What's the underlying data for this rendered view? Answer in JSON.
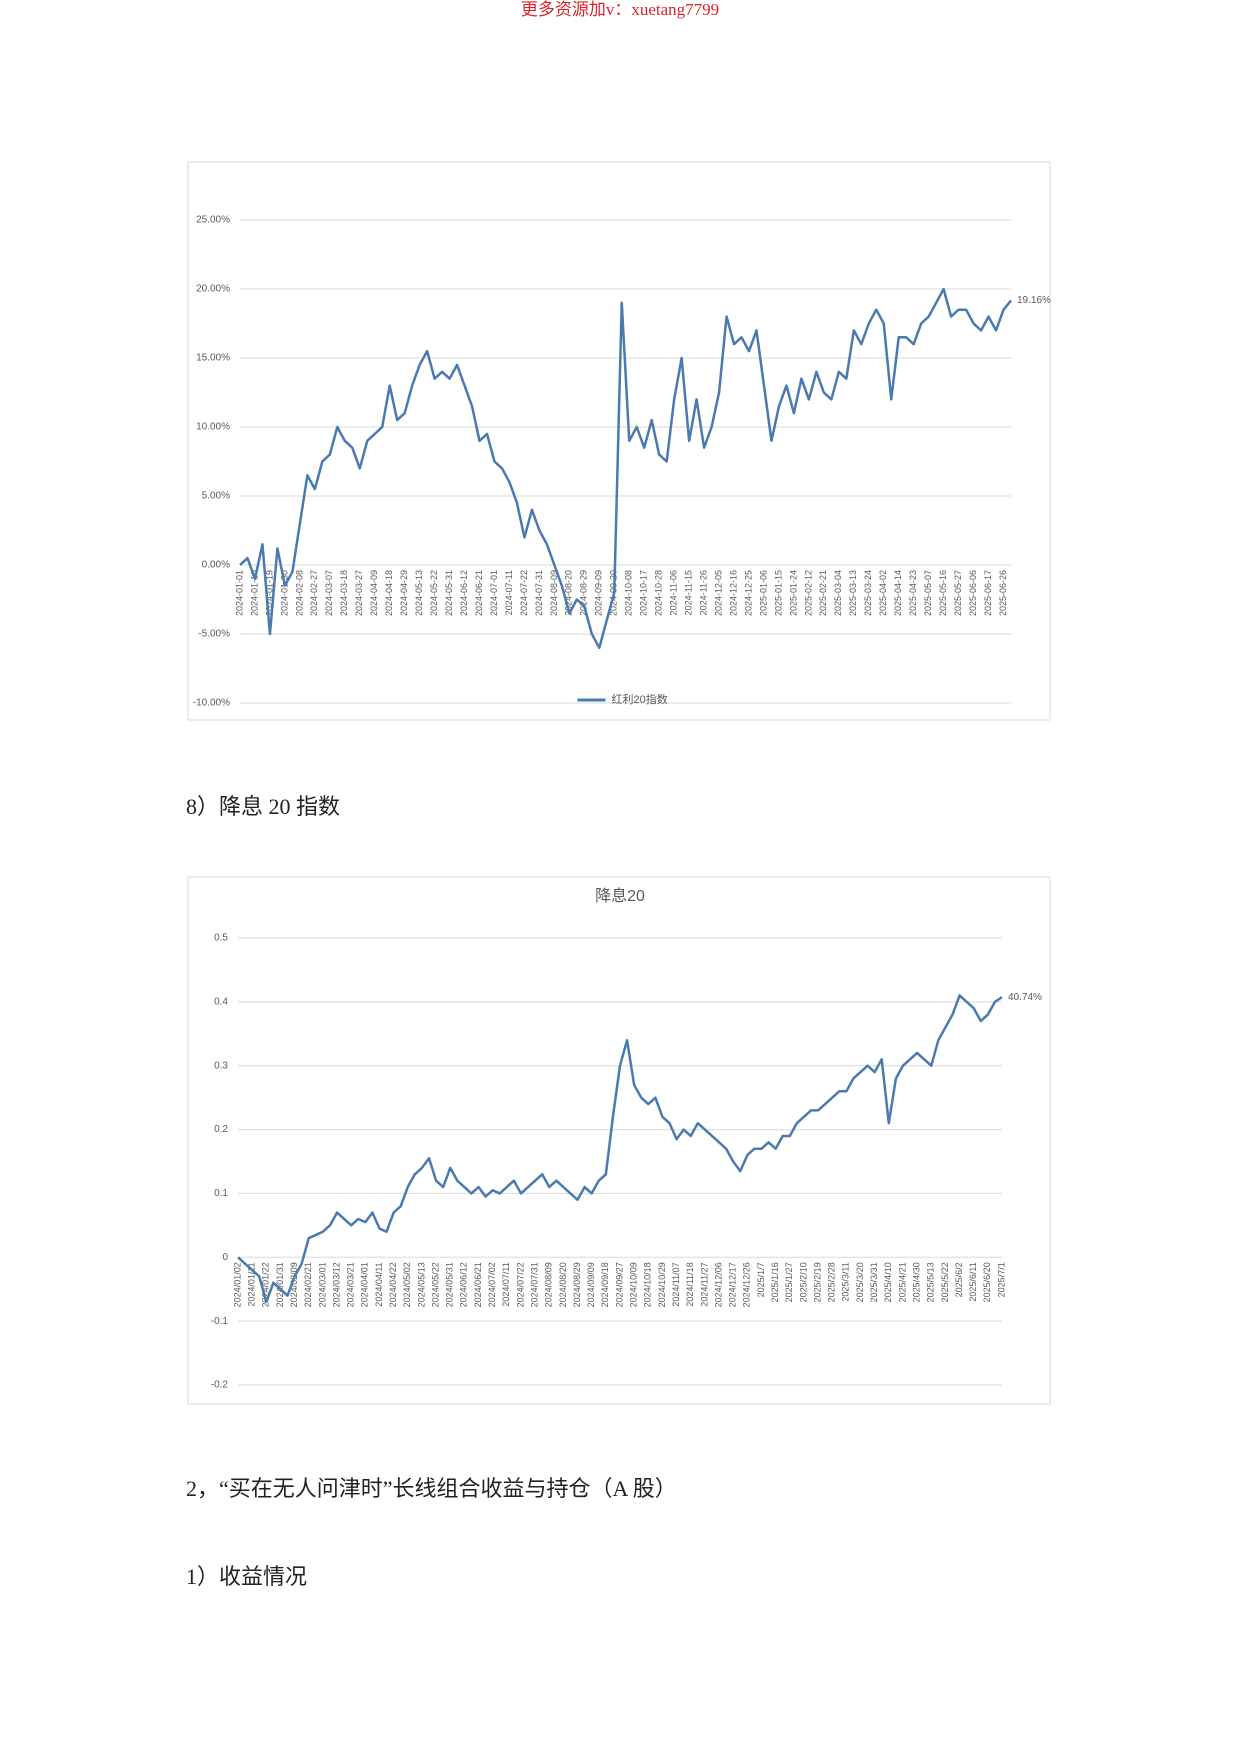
{
  "header": {
    "watermark": "更多资源加v：xuetang7799"
  },
  "headings": [
    "8）降息 20 指数",
    "2，“买在无人问津时”长线组合收益与持仓（A 股）",
    "1）收益情况"
  ],
  "chart_data": [
    {
      "type": "line",
      "legend": "bottom",
      "grid": true,
      "ylim": [
        -10,
        25
      ],
      "yticks": [
        {
          "value": -10,
          "label": "-10.00%"
        },
        {
          "value": -5,
          "label": "-5.00%"
        },
        {
          "value": 0,
          "label": "0.00%"
        },
        {
          "value": 5,
          "label": "5.00%"
        },
        {
          "value": 10,
          "label": "10.00%"
        },
        {
          "value": 15,
          "label": "15.00%"
        },
        {
          "value": 20,
          "label": "20.00%"
        },
        {
          "value": 25,
          "label": "25.00%"
        }
      ],
      "categories": [
        "2024-01-01",
        null,
        "2024-01-10",
        null,
        "2024-01-19",
        null,
        "2024-01-30",
        null,
        "2024-02-08",
        null,
        "2024-02-27",
        null,
        "2024-03-07",
        null,
        "2024-03-18",
        null,
        "2024-03-27",
        null,
        "2024-04-09",
        null,
        "2024-04-18",
        null,
        "2024-04-29",
        null,
        "2024-05-13",
        null,
        "2024-05-22",
        null,
        "2024-05-31",
        null,
        "2024-06-12",
        null,
        "2024-06-21",
        null,
        "2024-07-01",
        null,
        "2024-07-11",
        null,
        "2024-07-22",
        null,
        "2024-07-31",
        null,
        "2024-08-09",
        null,
        "2024-08-20",
        null,
        "2024-08-29",
        null,
        "2024-09-09",
        null,
        "2024-09-20",
        null,
        "2024-10-08",
        null,
        "2024-10-17",
        null,
        "2024-10-28",
        null,
        "2024-11-06",
        null,
        "2024-11-15",
        null,
        "2024-11-26",
        null,
        "2024-12-05",
        null,
        "2024-12-16",
        null,
        "2024-12-25",
        null,
        "2025-01-06",
        null,
        "2025-01-15",
        null,
        "2025-01-24",
        null,
        "2025-02-12",
        null,
        "2025-02-21",
        null,
        "2025-03-04",
        null,
        "2025-03-13",
        null,
        "2025-03-24",
        null,
        "2025-04-02",
        null,
        "2025-04-14",
        null,
        "2025-04-23",
        null,
        "2025-05-07",
        null,
        "2025-05-16",
        null,
        "2025-05-27",
        null,
        "2025-06-06",
        null,
        "2025-06-17",
        null,
        "2025-06-26",
        null
      ],
      "series": [
        {
          "name": "红利20指数",
          "color": "#4a7ab0",
          "values": [
            0,
            0.5,
            -1,
            1.5,
            -5,
            1.2,
            -1.5,
            -0.5,
            3,
            6.5,
            5.5,
            7.5,
            8,
            10,
            9,
            8.5,
            7,
            9,
            9.5,
            10,
            13,
            10.5,
            11,
            13,
            14.5,
            15.5,
            13.5,
            14,
            13.5,
            14.5,
            13,
            11.5,
            9,
            9.5,
            7.5,
            7,
            6,
            4.5,
            2,
            4,
            2.5,
            1.5,
            0,
            -1.5,
            -3.5,
            -2.5,
            -3,
            -5,
            -6,
            -4,
            -2,
            19,
            9,
            10,
            8.5,
            10.5,
            8,
            7.5,
            12,
            15,
            9,
            12,
            8.5,
            10,
            12.5,
            18,
            16,
            16.5,
            15.5,
            17,
            13,
            9,
            11.5,
            13,
            11,
            13.5,
            12,
            14,
            12.5,
            12,
            14,
            13.5,
            17,
            16,
            17.5,
            18.5,
            17.5,
            12,
            16.5,
            16.5,
            16,
            17.5,
            18,
            19,
            20,
            18,
            18.5,
            18.5,
            17.5,
            17,
            18,
            17,
            18.5,
            19.16
          ],
          "value_labels": [
            null,
            null,
            null,
            null,
            null,
            null,
            null,
            null,
            null,
            null,
            null,
            null,
            null,
            null,
            null,
            null,
            null,
            null,
            null,
            null,
            null,
            null,
            null,
            null,
            null,
            null,
            null,
            null,
            null,
            null,
            null,
            null,
            null,
            null,
            null,
            null,
            null,
            null,
            null,
            null,
            null,
            null,
            null,
            null,
            null,
            null,
            null,
            null,
            null,
            null,
            null,
            null,
            null,
            null,
            null,
            null,
            null,
            null,
            null,
            null,
            null,
            null,
            null,
            null,
            null,
            null,
            null,
            null,
            null,
            null,
            null,
            null,
            null,
            null,
            null,
            null,
            null,
            null,
            null,
            null,
            null,
            null,
            null,
            null,
            null,
            null,
            null,
            null,
            null,
            null,
            null,
            null,
            null,
            null,
            null,
            null,
            null,
            null,
            null,
            null,
            null,
            null,
            null,
            "19.16%"
          ]
        }
      ]
    },
    {
      "type": "line",
      "title": "降息20",
      "grid": true,
      "ylim": [
        -0.2,
        0.5
      ],
      "yticks": [
        -0.2,
        -0.1,
        0,
        0.1,
        0.2,
        0.3,
        0.4,
        0.5
      ],
      "categories": [
        "2024/01/02",
        null,
        "2024/01/11",
        null,
        "2024/01/22",
        null,
        "2024/01/31",
        null,
        "2024/02/09",
        null,
        "2024/02/21",
        null,
        "2024/03/01",
        null,
        "2024/03/12",
        null,
        "2024/03/21",
        null,
        "2024/04/01",
        null,
        "2024/04/11",
        null,
        "2024/04/22",
        null,
        "2024/05/02",
        null,
        "2024/05/13",
        null,
        "2024/05/22",
        null,
        "2024/05/31",
        null,
        "2024/06/12",
        null,
        "2024/06/21",
        null,
        "2024/07/02",
        null,
        "2024/07/11",
        null,
        "2024/07/22",
        null,
        "2024/07/31",
        null,
        "2024/08/09",
        null,
        "2024/08/20",
        null,
        "2024/08/29",
        null,
        "2024/09/09",
        null,
        "2024/09/18",
        null,
        "2024/09/27",
        null,
        "2024/10/09",
        null,
        "2024/10/18",
        null,
        "2024/10/29",
        null,
        "2024/11/07",
        null,
        "2024/11/18",
        null,
        "2024/11/27",
        null,
        "2024/12/06",
        null,
        "2024/12/17",
        null,
        "2024/12/26",
        null,
        "2025/1/7",
        null,
        "2025/1/16",
        null,
        "2025/1/27",
        null,
        "2025/2/10",
        null,
        "2025/2/19",
        null,
        "2025/2/28",
        null,
        "2025/3/11",
        null,
        "2025/3/20",
        null,
        "2025/3/31",
        null,
        "2025/4/10",
        null,
        "2025/4/21",
        null,
        "2025/4/30",
        null,
        "2025/5/13",
        null,
        "2025/5/22",
        null,
        "2025/6/2",
        null,
        "2025/6/11",
        null,
        "2025/6/20",
        null,
        "2025/7/1"
      ],
      "series": [
        {
          "color": "#4a7ab0",
          "values": [
            0,
            -0.01,
            -0.02,
            -0.03,
            -0.07,
            -0.04,
            -0.05,
            -0.06,
            -0.03,
            -0.01,
            0.03,
            0.035,
            0.04,
            0.05,
            0.07,
            0.06,
            0.05,
            0.06,
            0.055,
            0.07,
            0.045,
            0.04,
            0.07,
            0.08,
            0.11,
            0.13,
            0.14,
            0.155,
            0.12,
            0.11,
            0.14,
            0.12,
            0.11,
            0.1,
            0.11,
            0.095,
            0.105,
            0.1,
            0.11,
            0.12,
            0.1,
            0.11,
            0.12,
            0.13,
            0.11,
            0.12,
            0.11,
            0.1,
            0.09,
            0.11,
            0.1,
            0.12,
            0.13,
            0.22,
            0.3,
            0.34,
            0.27,
            0.25,
            0.24,
            0.25,
            0.22,
            0.21,
            0.185,
            0.2,
            0.19,
            0.21,
            0.2,
            0.19,
            0.18,
            0.17,
            0.15,
            0.135,
            0.16,
            0.17,
            0.17,
            0.18,
            0.17,
            0.19,
            0.19,
            0.21,
            0.22,
            0.23,
            0.23,
            0.24,
            0.25,
            0.26,
            0.26,
            0.28,
            0.29,
            0.3,
            0.29,
            0.31,
            0.21,
            0.28,
            0.3,
            0.31,
            0.32,
            0.31,
            0.3,
            0.34,
            0.36,
            0.38,
            0.41,
            0.4,
            0.39,
            0.37,
            0.38,
            0.4,
            0.4074
          ],
          "value_labels": [
            null,
            null,
            null,
            null,
            null,
            null,
            null,
            null,
            null,
            null,
            null,
            null,
            null,
            null,
            null,
            null,
            null,
            null,
            null,
            null,
            null,
            null,
            null,
            null,
            null,
            null,
            null,
            null,
            null,
            null,
            null,
            null,
            null,
            null,
            null,
            null,
            null,
            null,
            null,
            null,
            null,
            null,
            null,
            null,
            null,
            null,
            null,
            null,
            null,
            null,
            null,
            null,
            null,
            null,
            null,
            null,
            null,
            null,
            null,
            null,
            null,
            null,
            null,
            null,
            null,
            null,
            null,
            null,
            null,
            null,
            null,
            null,
            null,
            null,
            null,
            null,
            null,
            null,
            null,
            null,
            null,
            null,
            null,
            null,
            null,
            null,
            null,
            null,
            null,
            null,
            null,
            null,
            null,
            null,
            null,
            null,
            null,
            null,
            null,
            null,
            null,
            null,
            null,
            null,
            null,
            null,
            null,
            null,
            "40.74%"
          ]
        }
      ]
    }
  ]
}
